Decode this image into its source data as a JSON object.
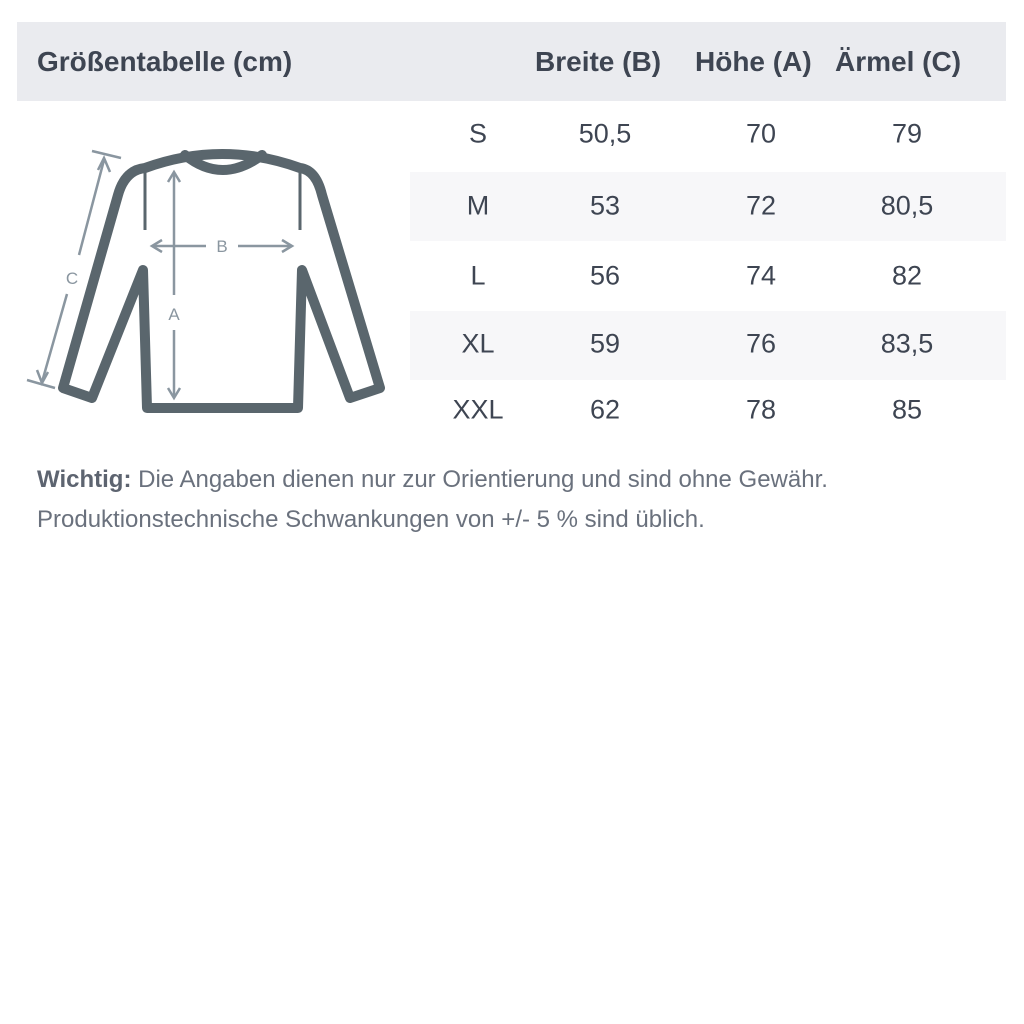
{
  "header": {
    "title": "Größentabelle (cm)",
    "columns": [
      "Breite (B)",
      "Höhe (A)",
      "Ärmel (C)"
    ]
  },
  "diagram": {
    "labels": {
      "width": "B",
      "height": "A",
      "sleeve": "C"
    },
    "stroke_color": "#5a666d",
    "arrow_color": "#8a96a0"
  },
  "rows": [
    {
      "size": "S",
      "breite": "50,5",
      "hoehe": "70",
      "aermel": "79"
    },
    {
      "size": "M",
      "breite": "53",
      "hoehe": "72",
      "aermel": "80,5"
    },
    {
      "size": "L",
      "breite": "56",
      "hoehe": "74",
      "aermel": "82"
    },
    {
      "size": "XL",
      "breite": "59",
      "hoehe": "76",
      "aermel": "83,5"
    },
    {
      "size": "XXL",
      "breite": "62",
      "hoehe": "78",
      "aermel": "85"
    }
  ],
  "note": {
    "label": "Wichtig:",
    "line1": " Die Angaben dienen nur zur Orientierung und sind ohne Gewähr.",
    "line2": "Produktionstechnische Schwankungen von +/- 5 % sind üblich."
  }
}
